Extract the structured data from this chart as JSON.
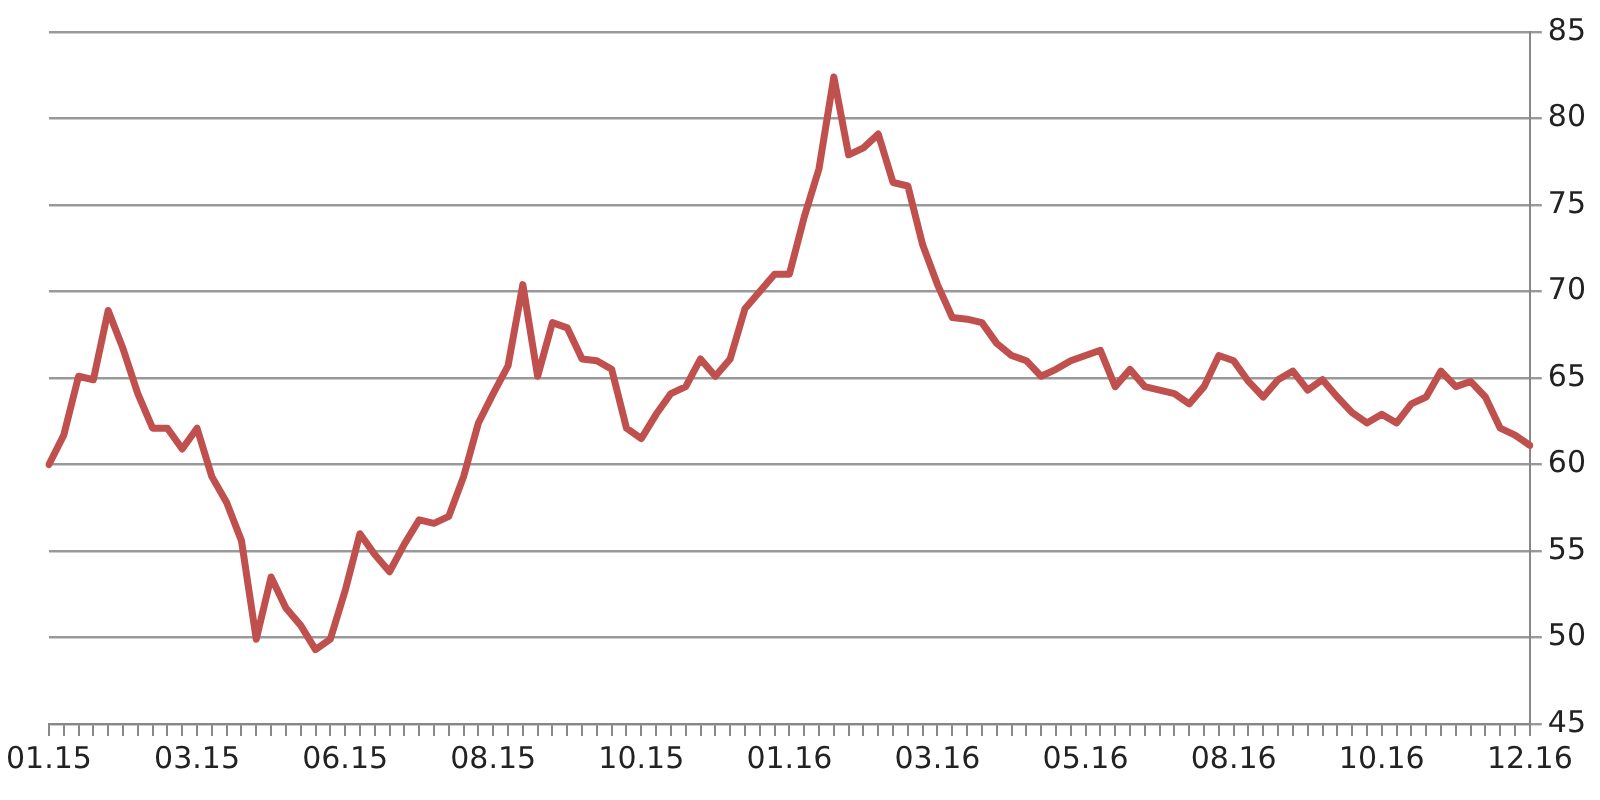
{
  "chart_data": {
    "type": "line",
    "categories": [
      "01.15",
      null,
      null,
      null,
      null,
      null,
      null,
      null,
      null,
      null,
      "03.15",
      null,
      null,
      null,
      null,
      null,
      null,
      null,
      null,
      null,
      "06.15",
      null,
      null,
      null,
      null,
      null,
      null,
      null,
      null,
      null,
      "08.15",
      null,
      null,
      null,
      null,
      null,
      null,
      null,
      null,
      null,
      "10.15",
      null,
      null,
      null,
      null,
      null,
      null,
      null,
      null,
      null,
      "01.16",
      null,
      null,
      null,
      null,
      null,
      null,
      null,
      null,
      null,
      "03.16",
      null,
      null,
      null,
      null,
      null,
      null,
      null,
      null,
      null,
      "05.16",
      null,
      null,
      null,
      null,
      null,
      null,
      null,
      null,
      null,
      "08.16",
      null,
      null,
      null,
      null,
      null,
      null,
      null,
      null,
      null,
      "10.16",
      null,
      null,
      null,
      null,
      null,
      null,
      null,
      null,
      null,
      "12.16"
    ],
    "series": [
      {
        "color": "#c0504d",
        "values": [
          60.0,
          61.7,
          65.1,
          64.9,
          68.9,
          66.7,
          64.1,
          62.1,
          62.1,
          60.9,
          62.1,
          59.3,
          57.8,
          55.6,
          49.9,
          53.5,
          51.7,
          50.7,
          49.3,
          49.9,
          52.7,
          56.0,
          54.8,
          53.8,
          55.4,
          56.8,
          56.6,
          57.0,
          59.3,
          62.4,
          64.1,
          65.7,
          70.4,
          65.1,
          68.2,
          67.9,
          66.1,
          66.0,
          65.5,
          62.1,
          61.5,
          62.9,
          64.1,
          64.5,
          66.1,
          65.1,
          66.1,
          69.0,
          70.0,
          71.0,
          71.0,
          74.3,
          77.1,
          82.4,
          77.9,
          78.3,
          79.1,
          76.3,
          76.1,
          72.7,
          70.4,
          68.5,
          68.4,
          68.2,
          67.0,
          66.3,
          66.0,
          65.1,
          65.5,
          66.0,
          66.3,
          66.6,
          64.5,
          65.5,
          64.5,
          64.3,
          64.1,
          63.5,
          64.5,
          66.3,
          66.0,
          64.8,
          63.9,
          64.9,
          65.4,
          64.3,
          64.9,
          63.9,
          63.0,
          62.4,
          62.9,
          62.4,
          63.5,
          63.9,
          65.4,
          64.5,
          64.8,
          63.9,
          62.1,
          61.7,
          61.1
        ]
      }
    ],
    "ylim": [
      45,
      85
    ],
    "yticks": [
      45,
      50,
      55,
      60,
      65,
      70,
      75,
      80,
      85
    ],
    "grid": "y",
    "legend": false,
    "marker": "none",
    "line_style": "solid"
  }
}
